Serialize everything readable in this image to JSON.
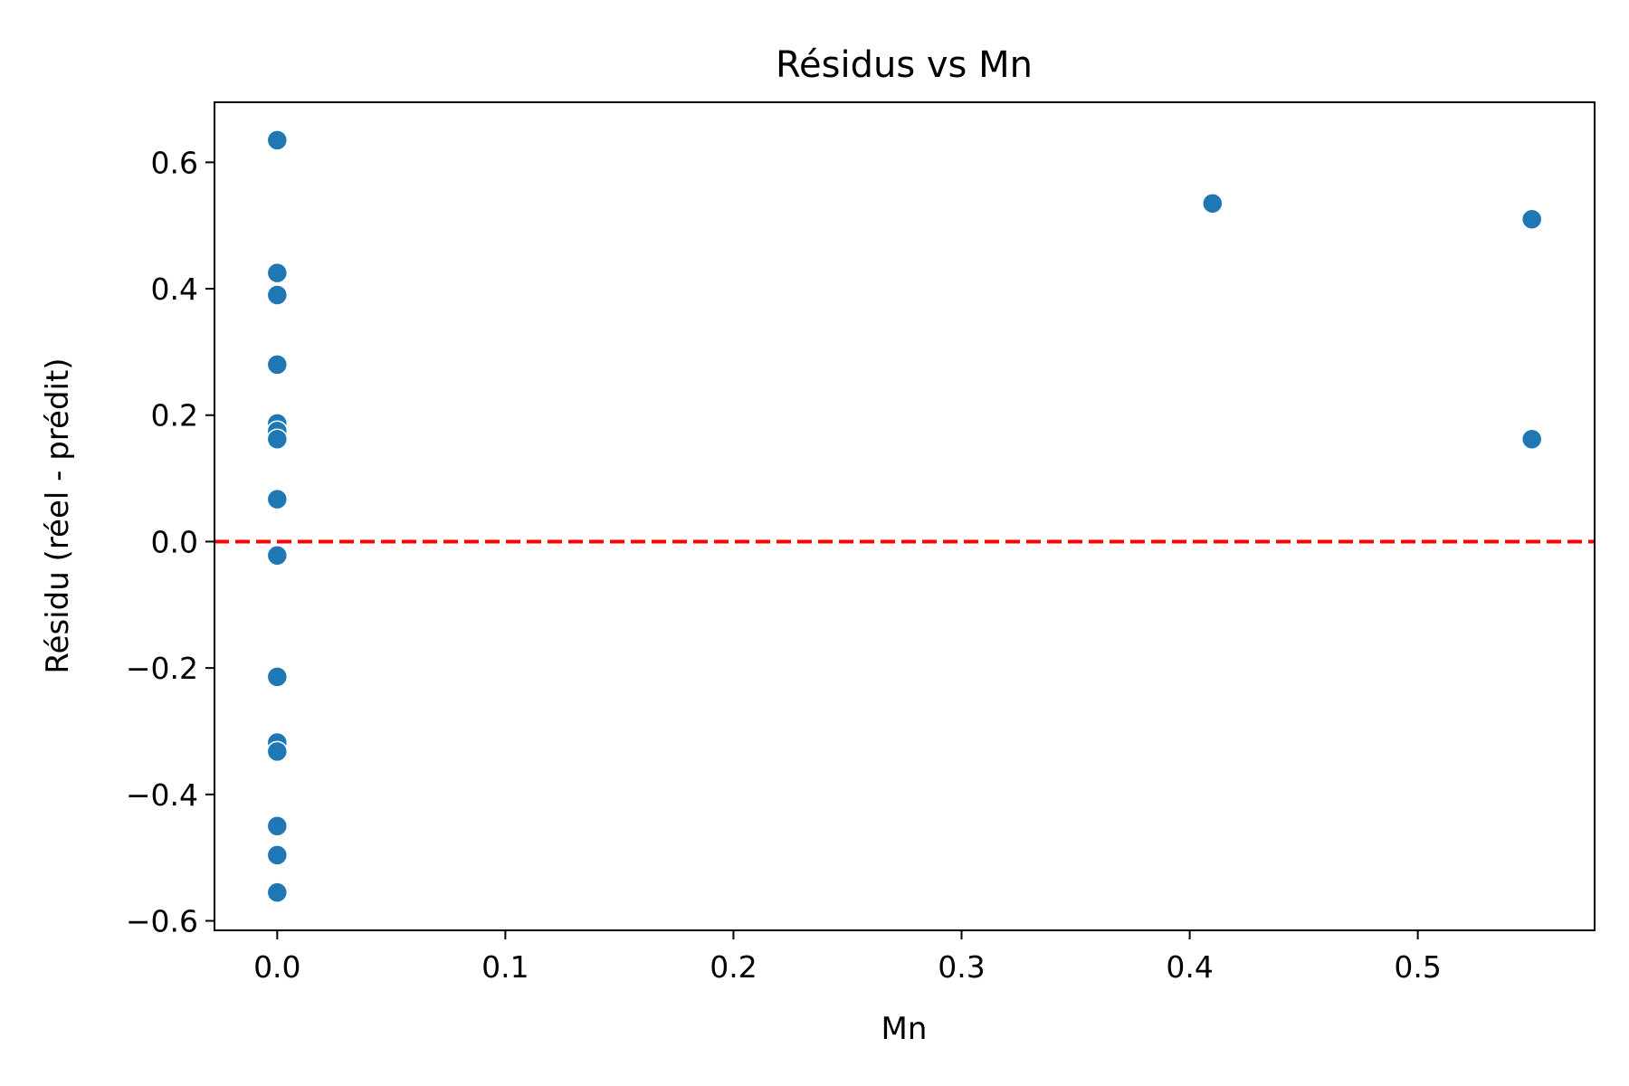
{
  "chart_data": {
    "type": "scatter",
    "title": "Résidus vs Mn",
    "xlabel": "Mn",
    "ylabel": "Résidu (réel - prédit)",
    "xlim": [
      -0.0275,
      0.5775
    ],
    "ylim": [
      -0.615,
      0.695
    ],
    "xticks": [
      0.0,
      0.1,
      0.2,
      0.3,
      0.4,
      0.5
    ],
    "xtick_labels": [
      "0.0",
      "0.1",
      "0.2",
      "0.3",
      "0.4",
      "0.5"
    ],
    "yticks": [
      -0.6,
      -0.4,
      -0.2,
      0.0,
      0.2,
      0.4,
      0.6
    ],
    "ytick_labels": [
      "−0.6",
      "−0.4",
      "−0.2",
      "0.0",
      "0.2",
      "0.4",
      "0.6"
    ],
    "grid": false,
    "point_color": "#1f77b4",
    "reference_line": {
      "y": 0.0,
      "color": "#ff0000",
      "style": "dashed"
    },
    "points": [
      {
        "x": 0.0,
        "y": 0.635
      },
      {
        "x": 0.0,
        "y": 0.425
      },
      {
        "x": 0.0,
        "y": 0.39
      },
      {
        "x": 0.0,
        "y": 0.28
      },
      {
        "x": 0.0,
        "y": 0.187
      },
      {
        "x": 0.0,
        "y": 0.175
      },
      {
        "x": 0.0,
        "y": 0.162
      },
      {
        "x": 0.0,
        "y": 0.067
      },
      {
        "x": 0.0,
        "y": -0.022
      },
      {
        "x": 0.0,
        "y": -0.214
      },
      {
        "x": 0.0,
        "y": -0.318
      },
      {
        "x": 0.0,
        "y": -0.332
      },
      {
        "x": 0.0,
        "y": -0.45
      },
      {
        "x": 0.0,
        "y": -0.496
      },
      {
        "x": 0.0,
        "y": -0.555
      },
      {
        "x": 0.41,
        "y": 0.535
      },
      {
        "x": 0.55,
        "y": 0.51
      },
      {
        "x": 0.55,
        "y": 0.162
      }
    ]
  }
}
